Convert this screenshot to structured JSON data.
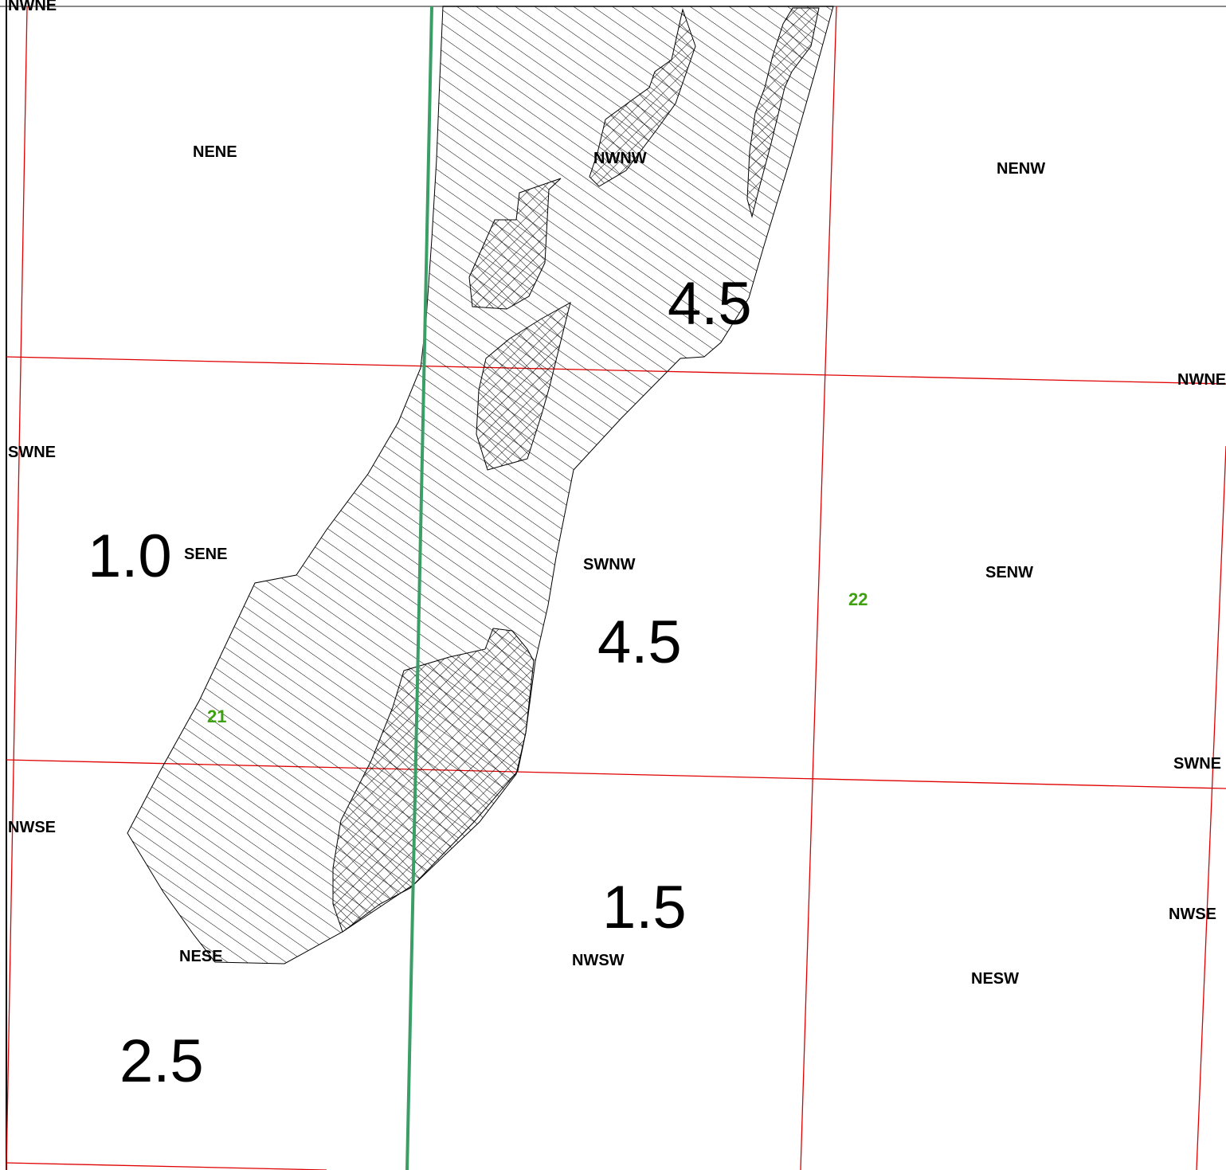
{
  "map": {
    "colors": {
      "grid_line": "#e00000",
      "section_line": "#3a9e66",
      "section_label": "#3fa010",
      "hatch": "#000000",
      "background": "#ffffff"
    },
    "quarter_quarter_labels": {
      "nwne_top": "NWNE",
      "nene": "NENE",
      "nwnw": "NWNW",
      "nenw": "NENW",
      "nwne_right": "NWNE",
      "swne_left": "SWNE",
      "sene": "SENE",
      "swnw": "SWNW",
      "senw": "SENW",
      "swne_right": "SWNE",
      "nwse_left": "NWSE",
      "nwse_right": "NWSE",
      "nese": "NESE",
      "nwsw": "NWSW",
      "nesw": "NESW"
    },
    "section_numbers": {
      "s21": "21",
      "s22": "22"
    },
    "zone_values": {
      "v1": "4.5",
      "v2": "1.0",
      "v3": "4.5",
      "v4": "1.5",
      "v5": "2.5"
    },
    "legend_fill_types": [
      "diagonal-hatch",
      "cross-hatch"
    ]
  }
}
